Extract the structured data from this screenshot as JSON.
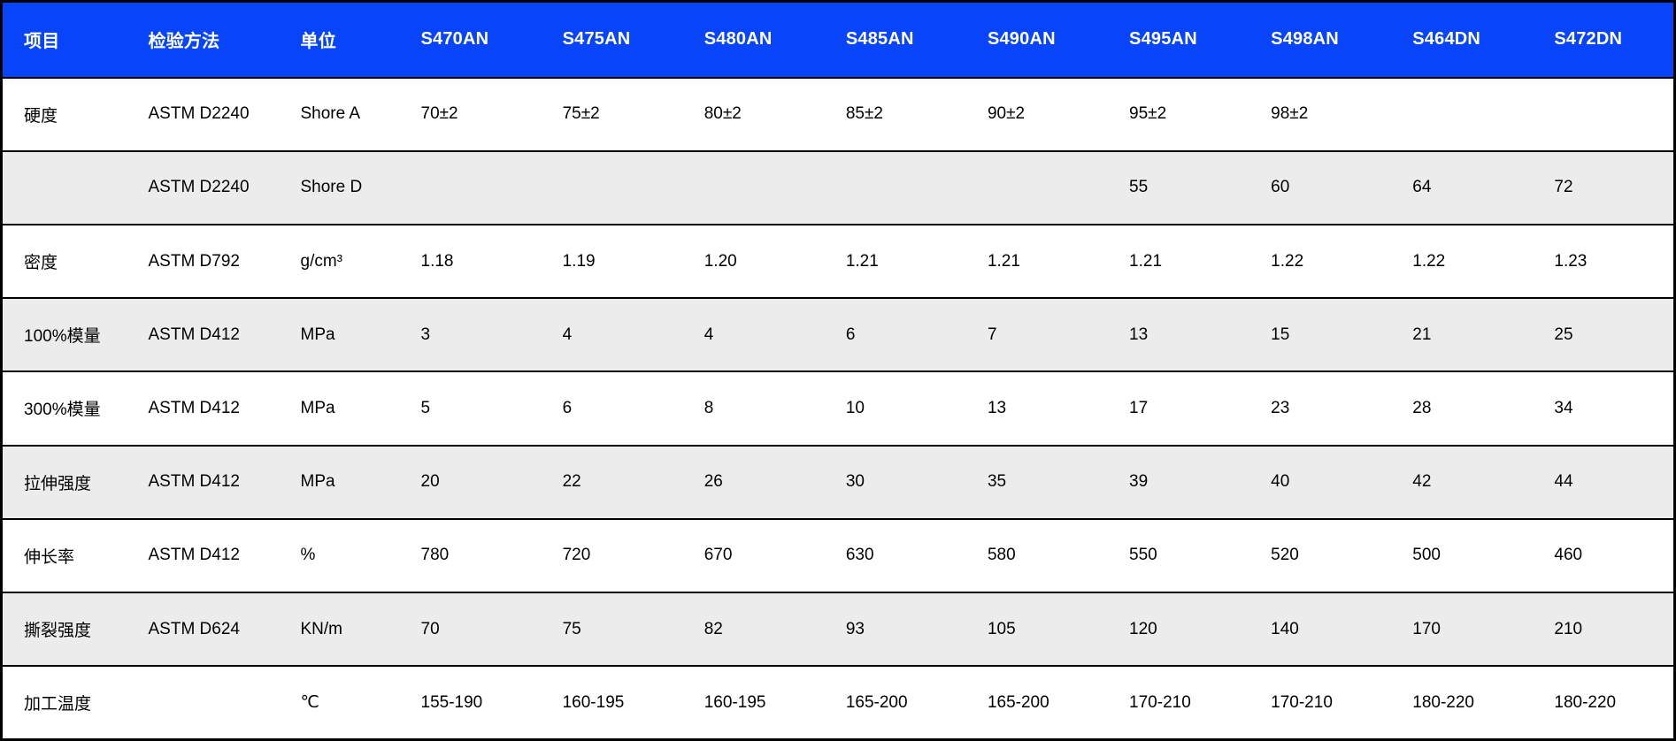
{
  "chart_data": {
    "type": "table",
    "title": "",
    "columns": [
      "项目",
      "检验方法",
      "单位",
      "S470AN",
      "S475AN",
      "S480AN",
      "S485AN",
      "S490AN",
      "S495AN",
      "S498AN",
      "S464DN",
      "S472DN"
    ],
    "rows": [
      [
        "硬度",
        "ASTM D2240",
        "Shore A",
        "70±2",
        "75±2",
        "80±2",
        "85±2",
        "90±2",
        "95±2",
        "98±2",
        "",
        ""
      ],
      [
        "",
        "ASTM D2240",
        "Shore D",
        "",
        "",
        "",
        "",
        "",
        "55",
        "60",
        "64",
        "72"
      ],
      [
        "密度",
        "ASTM D792",
        "g/cm³",
        "1.18",
        "1.19",
        "1.20",
        "1.21",
        "1.21",
        "1.21",
        "1.22",
        "1.22",
        "1.23"
      ],
      [
        "100%模量",
        "ASTM D412",
        "MPa",
        "3",
        "4",
        "4",
        "6",
        "7",
        "13",
        "15",
        "21",
        "25"
      ],
      [
        "300%模量",
        "ASTM D412",
        "MPa",
        "5",
        "6",
        "8",
        "10",
        "13",
        "17",
        "23",
        "28",
        "34"
      ],
      [
        "拉伸强度",
        "ASTM D412",
        "MPa",
        "20",
        "22",
        "26",
        "30",
        "35",
        "39",
        "40",
        "42",
        "44"
      ],
      [
        "伸长率",
        "ASTM D412",
        "%",
        "780",
        "720",
        "670",
        "630",
        "580",
        "550",
        "520",
        "500",
        "460"
      ],
      [
        "撕裂强度",
        "ASTM D624",
        "KN/m",
        "70",
        "75",
        "82",
        "93",
        "105",
        "120",
        "140",
        "170",
        "210"
      ],
      [
        "加工温度",
        "",
        "℃",
        "155-190",
        "160-195",
        "160-195",
        "165-200",
        "165-200",
        "170-210",
        "170-210",
        "180-220",
        "180-220"
      ]
    ],
    "layout": {
      "header_position": "top",
      "striped_rows": true,
      "grid": "horizontal-only"
    }
  },
  "colors": {
    "header_bg": "#0845FA",
    "header_text": "#FFFFFF",
    "row_bg": "#FFFFFF",
    "row_alt_bg": "#ECECED",
    "border": "#000000",
    "body_text": "#000000"
  }
}
